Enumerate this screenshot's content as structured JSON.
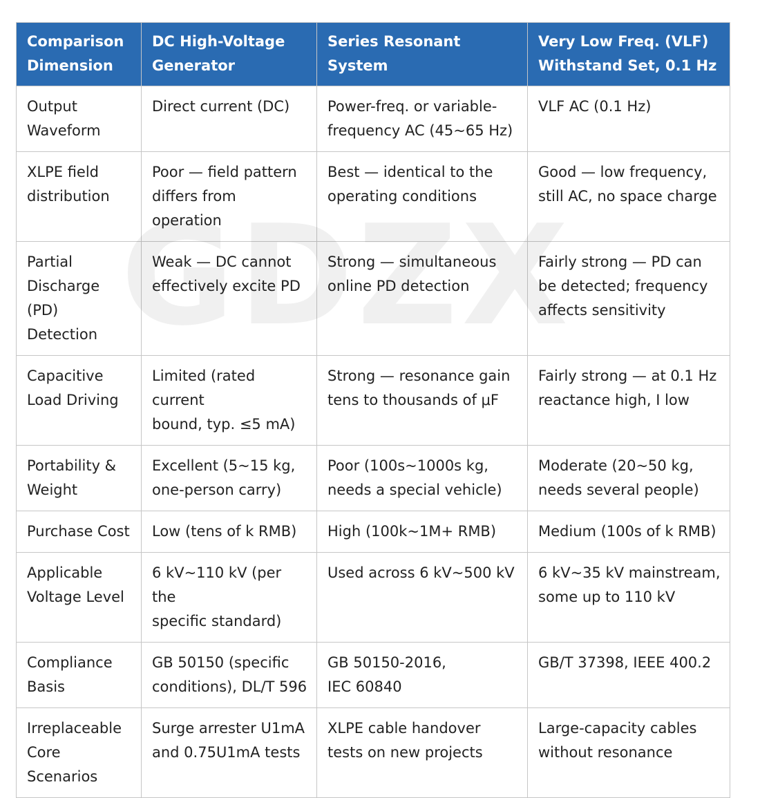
{
  "table": {
    "headers": [
      "Comparison\nDimension",
      "DC High-Voltage\nGenerator",
      "Series Resonant System",
      "Very Low Freq. (VLF)\nWithstand Set, 0.1 Hz"
    ],
    "rows": [
      [
        "Output\nWaveform",
        "Direct current (DC)",
        "Power-freq. or variable-\nfrequency AC (45~65 Hz)",
        "VLF AC (0.1 Hz)"
      ],
      [
        "XLPE field\ndistribution",
        "Poor — field pattern\ndiffers from operation",
        "Best — identical to the\noperating conditions",
        "Good — low frequency,\nstill AC, no space charge"
      ],
      [
        "Partial\nDischarge (PD)\nDetection",
        "Weak — DC cannot\neffectively excite PD",
        "Strong — simultaneous\nonline PD detection",
        "Fairly strong — PD can\nbe detected; frequency\naffects sensitivity"
      ],
      [
        "Capacitive\nLoad Driving",
        "Limited (rated current\nbound, typ. ≤5 mA)",
        "Strong — resonance gain\ntens to thousands of μF",
        "Fairly strong — at 0.1 Hz\nreactance high, I low"
      ],
      [
        "Portability &\nWeight",
        "Excellent (5~15 kg,\none-person carry)",
        "Poor (100s~1000s kg,\nneeds a special vehicle)",
        "Moderate (20~50 kg,\nneeds several people)"
      ],
      [
        "Purchase Cost",
        "Low (tens of k RMB)",
        "High (100k~1M+ RMB)",
        "Medium (100s of k RMB)"
      ],
      [
        "Applicable\nVoltage Level",
        "6 kV~110 kV (per the\nspecific standard)",
        "Used across 6 kV~500 kV",
        "6 kV~35 kV mainstream,\nsome up to 110 kV"
      ],
      [
        "Compliance\nBasis",
        "GB 50150 (specific\nconditions), DL/T 596",
        "GB 50150-2016,\nIEC 60840",
        "GB/T 37398, IEEE 400.2"
      ],
      [
        "Irreplaceable\nCore Scenarios",
        "Surge arrester U1mA\nand 0.75U1mA tests",
        "XLPE cable handover\ntests on new projects",
        "Large-capacity cables\nwithout resonance"
      ]
    ]
  },
  "watermark": {
    "text": "GDZX"
  },
  "colors": {
    "header_bg": "#2a6bb2",
    "header_text": "#ffffff",
    "body_text": "#222222",
    "border": "#c6c6c6"
  }
}
